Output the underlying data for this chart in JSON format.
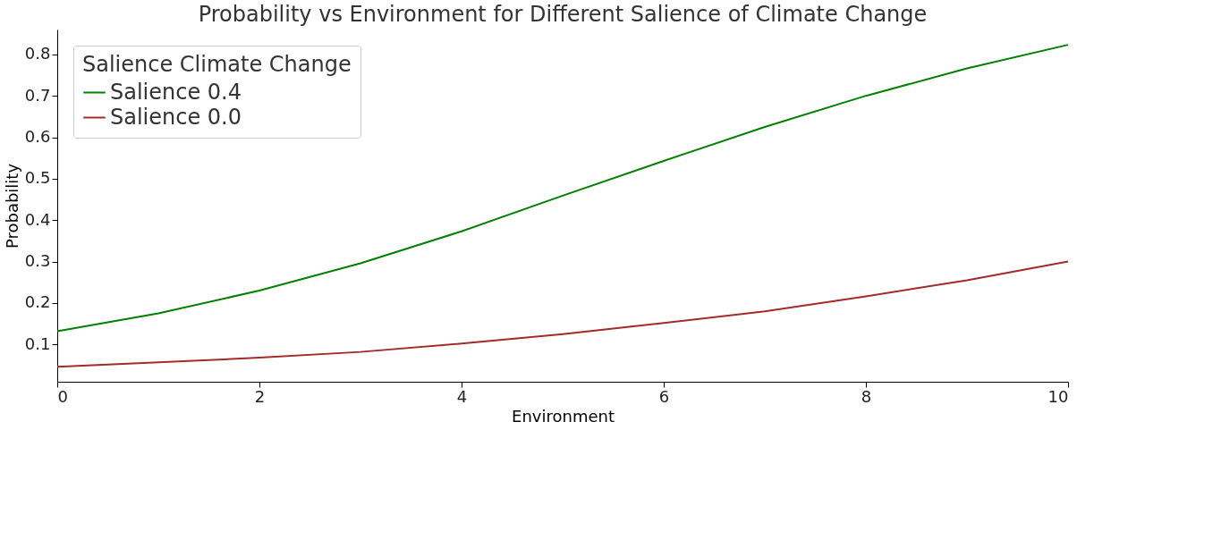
{
  "chart_data": {
    "type": "line",
    "title": "Probability vs Environment for Different Salience of Climate Change",
    "xlabel": "Environment",
    "ylabel": "Probability",
    "legend_title": "Salience Climate Change",
    "legend": "top left",
    "grid": false,
    "marker": "none",
    "line_style": "solid",
    "x": [
      0,
      1,
      2,
      3,
      4,
      5,
      6,
      7,
      8,
      9,
      10
    ],
    "xlim": [
      0,
      10
    ],
    "xticks": [
      0,
      2,
      4,
      6,
      8,
      10
    ],
    "ylim": [
      0.01,
      0.86
    ],
    "yticks": [
      0.1,
      0.2,
      0.3,
      0.4,
      0.5,
      0.6,
      0.7,
      0.8
    ],
    "series": [
      {
        "name": "Salience 0.4",
        "color": "#008000",
        "values": [
          0.132,
          0.175,
          0.23,
          0.296,
          0.373,
          0.459,
          0.543,
          0.625,
          0.7,
          0.766,
          0.823
        ]
      },
      {
        "name": "Salience 0.0",
        "color": "#a52a2a",
        "values": [
          0.046,
          0.057,
          0.068,
          0.082,
          0.102,
          0.125,
          0.152,
          0.18,
          0.216,
          0.255,
          0.3
        ]
      }
    ]
  }
}
